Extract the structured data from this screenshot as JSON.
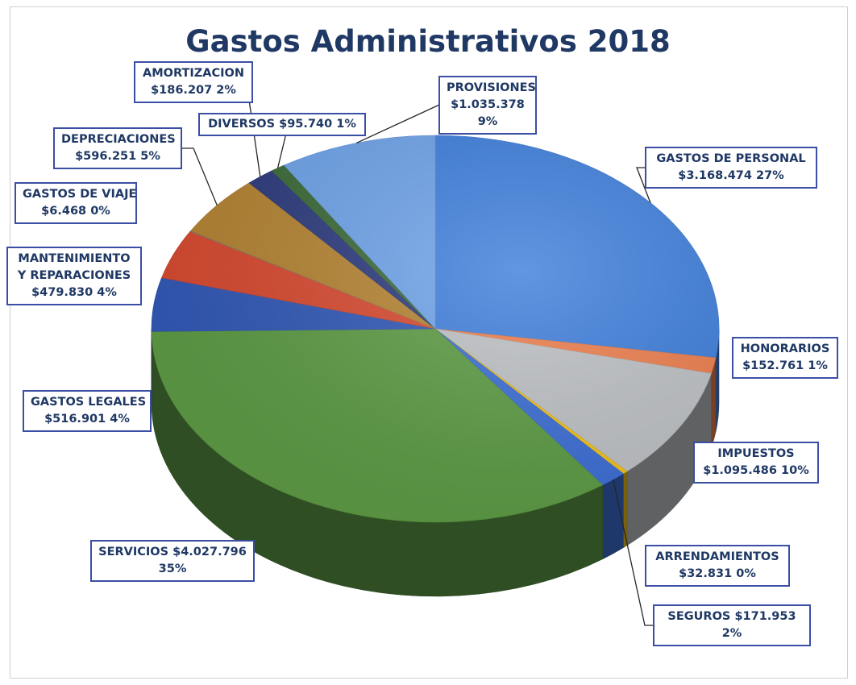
{
  "chart_data": {
    "type": "pie",
    "title": "Gastos Administrativos 2018",
    "slices": [
      {
        "name": "GASTOS DE PERSONAL",
        "amount": "$3.168.474",
        "pct": "27%",
        "value": 3168474,
        "color": "#3f7fdc"
      },
      {
        "name": "HONORARIOS",
        "amount": "$152.761",
        "pct": "1%",
        "value": 152761,
        "color": "#ee7f4e"
      },
      {
        "name": "IMPUESTOS",
        "amount": "$1.095.486",
        "pct": "10%",
        "value": 1095486,
        "color": "#bfc2c6"
      },
      {
        "name": "ARRENDAMIENTOS",
        "amount": "$32.831",
        "pct": "0%",
        "value": 32831,
        "color": "#f2c21c"
      },
      {
        "name": "SEGUROS",
        "amount": "$171.953",
        "pct": "2%",
        "value": 171953,
        "color": "#3d6fd6"
      },
      {
        "name": "SERVICIOS",
        "amount": "$4.027.796",
        "pct": "35%",
        "value": 4027796,
        "color": "#5d9c45"
      },
      {
        "name": "GASTOS LEGALES",
        "amount": "$516.901",
        "pct": "4%",
        "value": 516901,
        "color": "#3259b8"
      },
      {
        "name": "MANTENIMIENTO Y REPARACIONES",
        "amount": "$479.830",
        "pct": "4%",
        "value": 479830,
        "color": "#d84a30"
      },
      {
        "name": "GASTOS DE VIAJE",
        "amount": "$6.468",
        "pct": "0%",
        "value": 6468,
        "color": "#8a8a8a"
      },
      {
        "name": "DEPRECIACIONES",
        "amount": "$596.251",
        "pct": "5%",
        "value": 596251,
        "color": "#b58433"
      },
      {
        "name": "AMORTIZACION",
        "amount": "$186.207",
        "pct": "2%",
        "value": 186207,
        "color": "#2e3c7e"
      },
      {
        "name": "DIVERSOS",
        "amount": "$95.740",
        "pct": "1%",
        "value": 95740,
        "color": "#3d6b3a"
      },
      {
        "name": "PROVISIONES",
        "amount": "$1.035.378",
        "pct": "9%",
        "value": 1035378,
        "color": "#6fa4ea"
      }
    ]
  }
}
